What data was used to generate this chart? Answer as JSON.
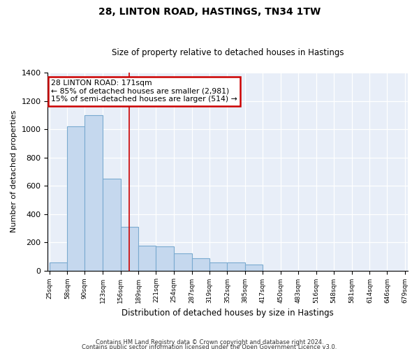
{
  "title": "28, LINTON ROAD, HASTINGS, TN34 1TW",
  "subtitle": "Size of property relative to detached houses in Hastings",
  "xlabel": "Distribution of detached houses by size in Hastings",
  "ylabel": "Number of detached properties",
  "annotation_line1": "28 LINTON ROAD: 171sqm",
  "annotation_line2": "← 85% of detached houses are smaller (2,981)",
  "annotation_line3": "15% of semi-detached houses are larger (514) →",
  "bins": [
    25,
    58,
    90,
    123,
    156,
    189,
    221,
    254,
    287,
    319,
    352,
    385,
    417,
    450,
    483,
    516,
    548,
    581,
    614,
    646,
    679
  ],
  "bar_values": [
    55,
    1020,
    1100,
    650,
    310,
    175,
    170,
    120,
    85,
    55,
    55,
    40,
    0,
    0,
    0,
    0,
    0,
    0,
    0,
    0
  ],
  "bar_color": "#c5d8ee",
  "bar_edge_color": "#7aaad0",
  "vline_color": "#cc0000",
  "vline_x": 171.5,
  "annotation_box_edgecolor": "#cc0000",
  "background_color": "#e8eef8",
  "footnote1": "Contains HM Land Registry data © Crown copyright and database right 2024.",
  "footnote2": "Contains public sector information licensed under the Open Government Licence v3.0.",
  "ylim": [
    0,
    1400
  ],
  "yticks": [
    0,
    200,
    400,
    600,
    800,
    1000,
    1200,
    1400
  ],
  "title_fontsize": 10,
  "subtitle_fontsize": 8.5,
  "ylabel_fontsize": 8,
  "xlabel_fontsize": 8.5
}
